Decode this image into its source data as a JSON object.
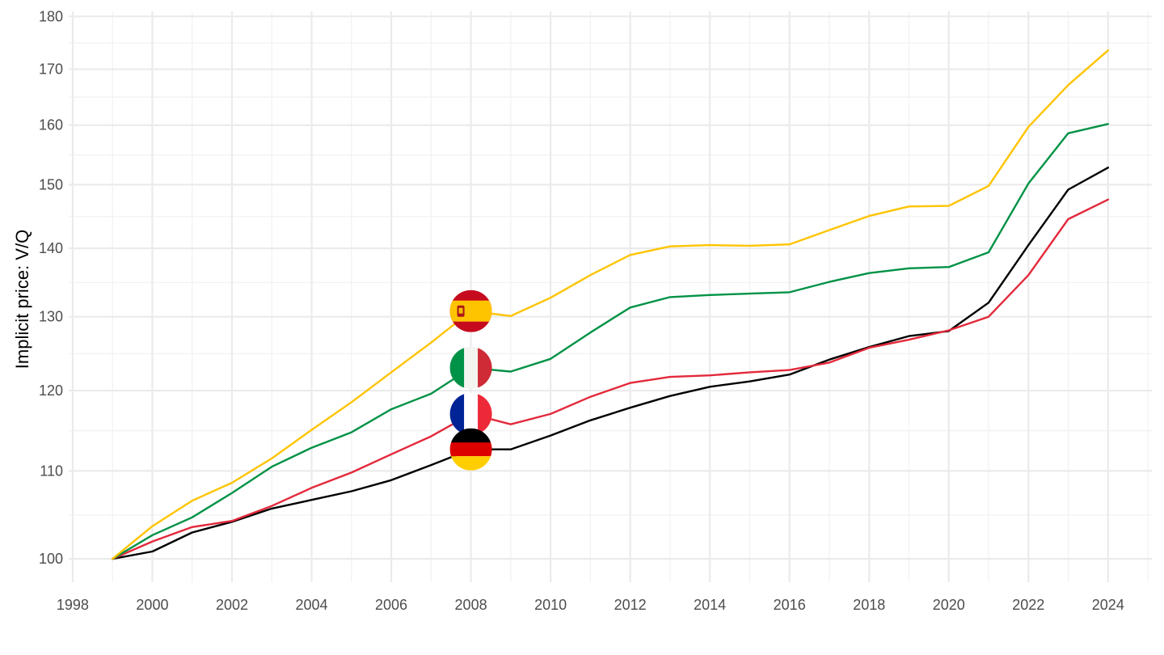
{
  "chart_data": {
    "type": "line",
    "title": "",
    "xlabel": "",
    "ylabel": "Implicit price: V/Q",
    "y_scale": "log",
    "xlim": [
      1997.9,
      2025.1
    ],
    "ylim": [
      97.5,
      181
    ],
    "x_ticks": [
      1998,
      2000,
      2002,
      2004,
      2006,
      2008,
      2010,
      2012,
      2014,
      2016,
      2018,
      2020,
      2022,
      2024
    ],
    "x_tick_labels": [
      "1998",
      "2000",
      "2002",
      "2004",
      "2006",
      "2008",
      "2010",
      "2012",
      "2014",
      "2016",
      "2018",
      "2020",
      "2022",
      "2024"
    ],
    "y_ticks": [
      100,
      110,
      120,
      130,
      140,
      150,
      160,
      170,
      180
    ],
    "y_tick_labels": [
      "100",
      "110",
      "120",
      "130",
      "140",
      "150",
      "160",
      "170",
      "180"
    ],
    "grid": true,
    "legend": "flag markers placed on each line at 2008",
    "x": [
      1999,
      2000,
      2001,
      2002,
      2003,
      2004,
      2005,
      2006,
      2007,
      2008,
      2009,
      2010,
      2011,
      2012,
      2013,
      2014,
      2015,
      2016,
      2017,
      2018,
      2019,
      2020,
      2021,
      2022,
      2023,
      2024
    ],
    "series": [
      {
        "name": "Spain",
        "color": "#FFC400",
        "flag": "spain-flag",
        "marker_x": 2008,
        "values": [
          100,
          103.6,
          106.5,
          108.6,
          111.5,
          115.0,
          118.5,
          122.4,
          126.4,
          130.8,
          130.1,
          132.7,
          136.0,
          139.0,
          140.3,
          140.5,
          140.4,
          140.6,
          142.8,
          145.0,
          146.5,
          146.6,
          149.8,
          159.7,
          167.1,
          173.5
        ]
      },
      {
        "name": "Italy",
        "color": "#009246",
        "flag": "italy-flag",
        "marker_x": 2008,
        "values": [
          100,
          102.6,
          104.6,
          107.4,
          110.5,
          112.8,
          114.7,
          117.6,
          119.6,
          123.0,
          122.5,
          124.2,
          127.8,
          131.3,
          132.8,
          133.1,
          133.3,
          133.5,
          135.0,
          136.3,
          137.0,
          137.2,
          139.4,
          150.2,
          158.6,
          160.2
        ]
      },
      {
        "name": "France",
        "color": "#E3293B",
        "flag": "france-flag",
        "marker_x": 2008,
        "values": [
          100,
          101.9,
          103.5,
          104.2,
          105.9,
          108.0,
          109.8,
          112.0,
          114.2,
          117.0,
          115.7,
          117.0,
          119.2,
          121.0,
          121.8,
          122.0,
          122.4,
          122.7,
          123.7,
          125.7,
          126.8,
          128.1,
          130.0,
          136.0,
          144.5,
          147.6
        ]
      },
      {
        "name": "Germany",
        "color": "#000000",
        "flag": "germany-flag",
        "marker_x": 2008,
        "values": [
          100,
          100.8,
          102.9,
          104.1,
          105.6,
          106.6,
          107.6,
          108.9,
          110.7,
          112.6,
          112.6,
          114.3,
          116.2,
          117.8,
          119.3,
          120.5,
          121.2,
          122.1,
          124.1,
          125.8,
          127.3,
          128.0,
          132.0,
          140.5,
          149.2,
          152.8
        ]
      }
    ]
  }
}
